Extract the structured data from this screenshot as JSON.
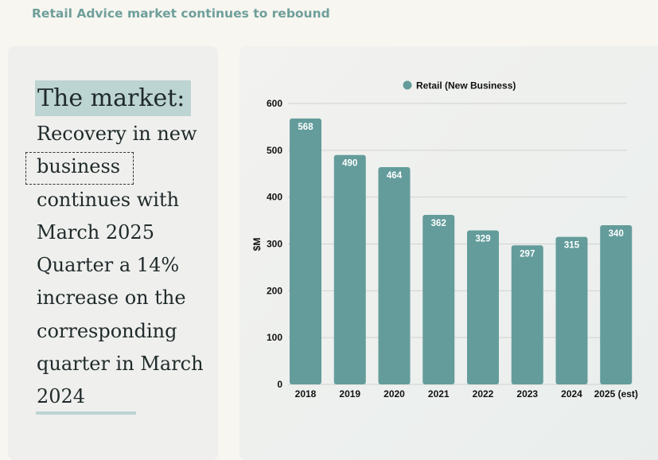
{
  "header": {
    "title": "Retail Advice market continues to rebound"
  },
  "left_panel": {
    "heading": "The market:",
    "body_lines": [
      "Recovery in new",
      "business",
      "continues with",
      "March 2025",
      "Quarter a 14%",
      "increase on the",
      "corresponding",
      "quarter in March",
      "2024"
    ]
  },
  "colors": {
    "bar": "#639c9b",
    "accent": "#6f9f9a",
    "highlight": "#bcd4d2"
  },
  "chart_data": {
    "type": "bar",
    "categories": [
      "2018",
      "2019",
      "2020",
      "2021",
      "2022",
      "2023",
      "2024",
      "2025 (est)"
    ],
    "series": [
      {
        "name": "Retail (New Business)",
        "values": [
          568,
          490,
          464,
          362,
          329,
          297,
          315,
          340
        ]
      }
    ],
    "title": "",
    "xlabel": "",
    "ylabel": "$M",
    "ylim": [
      0,
      600
    ],
    "yticks": [
      "0",
      "100",
      "200",
      "300",
      "400",
      "500",
      "600"
    ],
    "grid": true,
    "legend_position": "top"
  }
}
